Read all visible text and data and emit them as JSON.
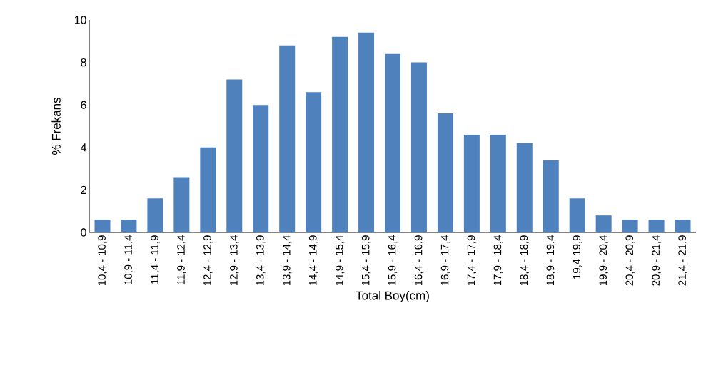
{
  "chart_data": {
    "type": "bar",
    "xlabel": "Total Boy(cm)",
    "ylabel": "% Frekans",
    "categories": [
      "10,4 - 10,9",
      "10,9 - 11,4",
      "11,4 - 11,9",
      "11,9 - 12,4",
      "12,4 - 12,9",
      "12,9 - 13,4",
      "13,4 - 13,9",
      "13,9 - 14,4",
      "14,4 - 14,9",
      "14,9 - 15,4",
      "15,4 - 15,9",
      "15,9 - 16,4",
      "16,4 - 16,9",
      "16,9 - 17,4",
      "17,4 - 17,9",
      "17,9 - 18,4",
      "18,4 - 18,9",
      "18,9 - 19,4",
      "19,4 19,9",
      "19,9 - 20,4",
      "20,4 - 20,9",
      "20,9 - 21,4",
      "21,4 - 21,9"
    ],
    "values": [
      0.6,
      0.6,
      1.6,
      2.6,
      4.0,
      7.2,
      6.0,
      8.8,
      6.6,
      9.2,
      9.4,
      8.4,
      8.0,
      5.6,
      4.6,
      4.6,
      4.2,
      3.4,
      1.6,
      0.8,
      0.6,
      0.6,
      0.6
    ],
    "color": "#4f81bd",
    "ylim": [
      0,
      10
    ],
    "yticks": [
      0,
      2,
      4,
      6,
      8,
      10
    ],
    "grid": false
  }
}
